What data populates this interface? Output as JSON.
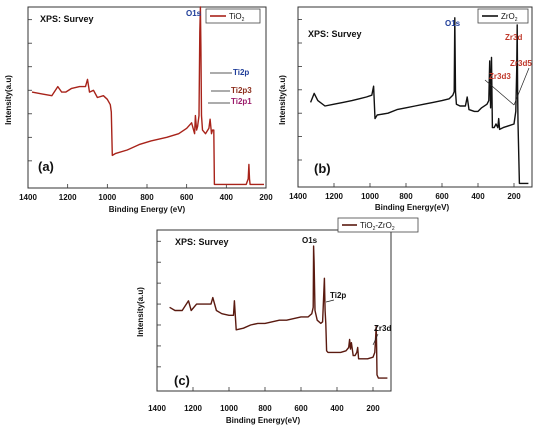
{
  "chart_data": [
    {
      "type": "line",
      "panel_label": "(a)",
      "title": "XPS: Survey",
      "xlabel": "Binding Energy (eV)",
      "ylabel": "Intensity(a.u)",
      "xlim": [
        1400,
        200
      ],
      "x_ticks": [
        1400,
        1200,
        1000,
        800,
        600,
        400,
        200
      ],
      "x_tick_labels": [
        "1400",
        "1200",
        "1000",
        "800",
        "600",
        "400",
        "200"
      ],
      "ylim": [
        0,
        100
      ],
      "y_tick_values": [
        15,
        28,
        41,
        54,
        67,
        80,
        93
      ],
      "grid": false,
      "legend": {
        "placement": "top-right",
        "entries": [
          "TiO",
          "2"
        ]
      },
      "series": [
        {
          "name": "TiO2",
          "color": "#a8231a",
          "x": [
            1380,
            1330,
            1280,
            1250,
            1230,
            1210,
            1180,
            1140,
            1110,
            1100,
            1090,
            1070,
            1050,
            1020,
            1000,
            985,
            980,
            975,
            960,
            900,
            840,
            780,
            700,
            640,
            600,
            575,
            560,
            556,
            550,
            545,
            538,
            534,
            531,
            528,
            525,
            520,
            505,
            488,
            482,
            475,
            470,
            463,
            460,
            455,
            440,
            400,
            360,
            330,
            300,
            290,
            286,
            283,
            280,
            260,
            230,
            210
          ],
          "y": [
            53,
            52,
            51,
            56,
            53,
            53,
            55,
            56,
            56,
            60,
            53,
            54,
            50,
            51,
            49,
            46,
            42,
            18,
            19,
            21,
            24,
            26,
            28,
            30,
            33,
            36,
            30,
            40,
            32,
            34,
            40,
            86,
            100,
            78,
            40,
            32,
            30,
            33,
            38,
            30,
            32,
            32,
            2,
            2,
            2,
            2,
            2,
            2,
            2,
            5,
            13,
            5,
            2,
            2,
            2,
            2
          ]
        }
      ],
      "annotations": [
        {
          "text": "O1s",
          "color": "#1f3d99"
        },
        {
          "text": "Ti2p",
          "color": "#1f3d99"
        },
        {
          "text": "Ti2p3",
          "color": "#8c2e1c"
        },
        {
          "text": "Ti2p1",
          "color": "#9b1c6b"
        }
      ]
    },
    {
      "type": "line",
      "panel_label": "(b)",
      "title": "XPS: Survey",
      "xlabel": "Binding Energy(eV)",
      "ylabel": "Intensity(a.u)",
      "xlim": [
        1400,
        100
      ],
      "x_ticks": [
        1400,
        1200,
        1000,
        800,
        600,
        400,
        200
      ],
      "x_tick_labels": [
        "1400",
        "1200",
        "1000",
        "800",
        "600",
        "400",
        "200"
      ],
      "ylim": [
        0,
        100
      ],
      "y_tick_values": [
        15,
        28,
        41,
        54,
        67,
        80,
        93
      ],
      "grid": false,
      "legend": {
        "placement": "top-right",
        "entries": [
          "ZrO",
          "2"
        ]
      },
      "series": [
        {
          "name": "ZrO2",
          "color": "#111111",
          "x": [
            1330,
            1310,
            1290,
            1250,
            1200,
            1150,
            1100,
            1060,
            1020,
            990,
            980,
            972,
            960,
            900,
            850,
            800,
            750,
            700,
            650,
            600,
            560,
            540,
            532,
            529,
            525,
            520,
            500,
            470,
            460,
            450,
            420,
            400,
            380,
            350,
            340,
            335,
            330,
            325,
            320,
            310,
            300,
            290,
            285,
            280,
            260,
            230,
            200,
            190,
            185,
            182,
            180,
            178,
            170,
            150,
            120
          ],
          "y": [
            47,
            52,
            48,
            45,
            46,
            47,
            48,
            49,
            50,
            51,
            56,
            38,
            40,
            41,
            43,
            44,
            45,
            46,
            47,
            48,
            49,
            51,
            53,
            94,
            53,
            46,
            45,
            45,
            50,
            43,
            42,
            42,
            44,
            46,
            48,
            70,
            44,
            72,
            33,
            33,
            35,
            33,
            38,
            32,
            33,
            34,
            35,
            42,
            65,
            90,
            55,
            36,
            2,
            2,
            2
          ]
        }
      ],
      "annotations": [
        {
          "text": "O1s",
          "color": "#1f3d99"
        },
        {
          "text": "Zr3d",
          "color": "#c0392b"
        },
        {
          "text": "Zr3d3",
          "color": "#c0392b"
        },
        {
          "text": "Zr3d5",
          "color": "#c0392b"
        }
      ]
    },
    {
      "type": "line",
      "panel_label": "(c)",
      "title": "XPS: Survey",
      "xlabel": "Binding Energy(eV)",
      "ylabel": "Intensity(a.u)",
      "xlim": [
        1400,
        100
      ],
      "x_ticks": [
        1400,
        1200,
        1000,
        800,
        600,
        400,
        200
      ],
      "x_tick_labels": [
        "1400",
        "1200",
        "1000",
        "800",
        "600",
        "400",
        "200"
      ],
      "ylim": [
        0,
        100
      ],
      "y_tick_values": [
        15,
        28,
        41,
        54,
        67,
        80,
        93
      ],
      "grid": false,
      "legend": {
        "placement": "top-right",
        "entries": [
          "TiO",
          "2",
          "-ZrO",
          "2"
        ]
      },
      "series": [
        {
          "name": "TiO2-ZrO2",
          "color": "#5a1a10",
          "x": [
            1330,
            1300,
            1260,
            1225,
            1210,
            1180,
            1130,
            1100,
            1090,
            1070,
            1040,
            1000,
            975,
            970,
            960,
            920,
            880,
            840,
            800,
            760,
            720,
            680,
            640,
            600,
            560,
            540,
            532,
            530,
            527,
            522,
            510,
            490,
            480,
            470,
            466,
            462,
            458,
            450,
            420,
            400,
            380,
            350,
            335,
            330,
            325,
            320,
            310,
            300,
            290,
            285,
            280,
            260,
            230,
            200,
            190,
            185,
            182,
            180,
            178,
            170,
            150,
            120
          ],
          "y": [
            52,
            50,
            50,
            56,
            50,
            54,
            54,
            54,
            58,
            50,
            48,
            47,
            47,
            56,
            38,
            39,
            41,
            42,
            42,
            43,
            44,
            44,
            45,
            46,
            46,
            48,
            52,
            90,
            80,
            50,
            44,
            42,
            43,
            70,
            50,
            42,
            25,
            24,
            24,
            24,
            24,
            25,
            27,
            32,
            26,
            30,
            22,
            22,
            24,
            27,
            20,
            20,
            20,
            21,
            24,
            34,
            40,
            28,
            10,
            8,
            8,
            8
          ]
        }
      ],
      "annotations": [
        {
          "text": "O1s",
          "color": "#111111"
        },
        {
          "text": "Ti2p",
          "color": "#111111"
        },
        {
          "text": "Zr3d",
          "color": "#111111"
        }
      ]
    }
  ]
}
